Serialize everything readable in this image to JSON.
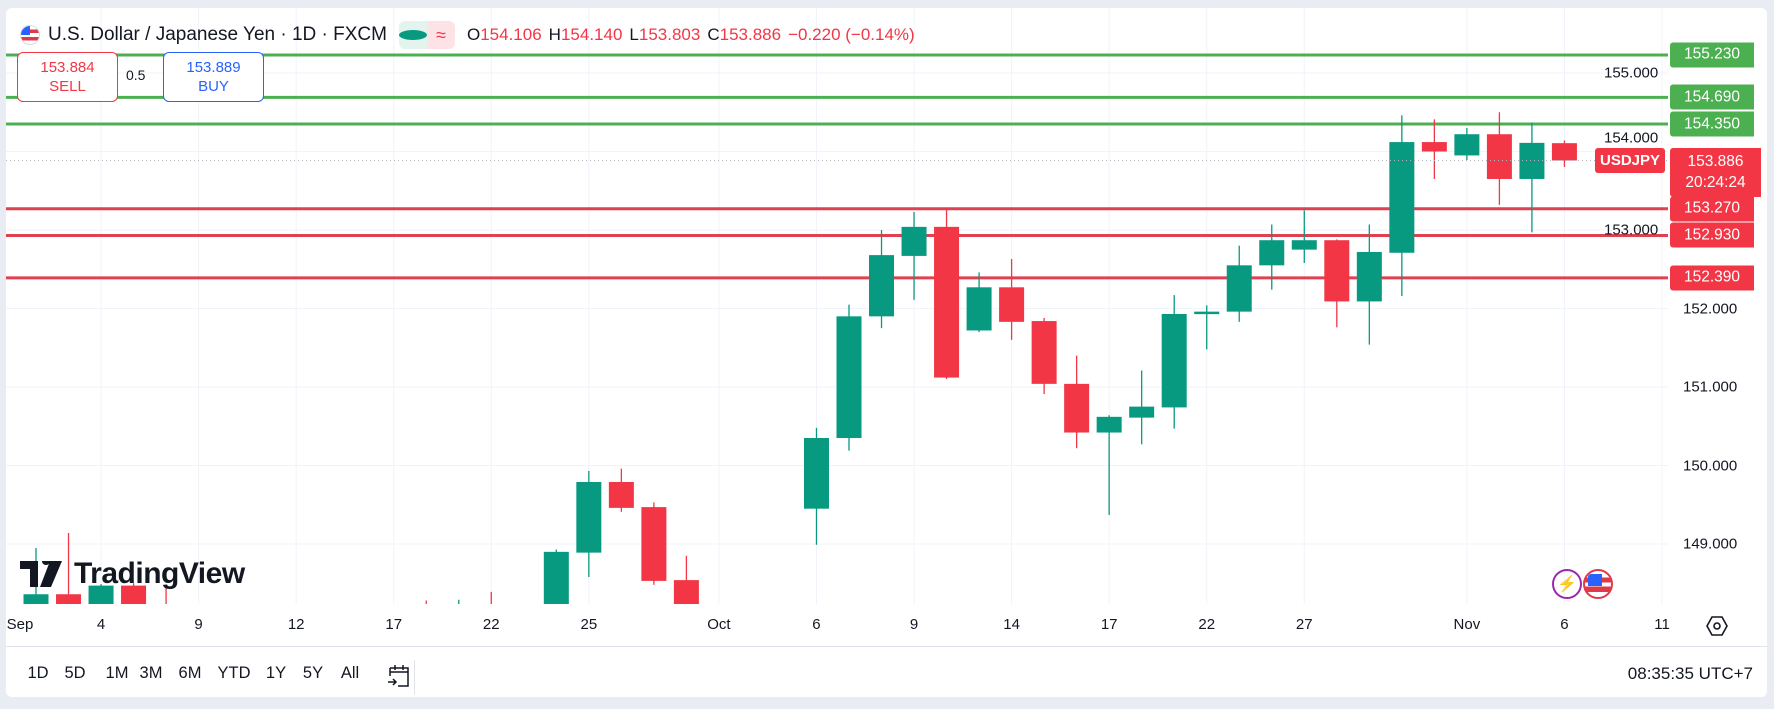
{
  "header": {
    "symbol_title": "U.S. Dollar / Japanese Yen · 1D · FXCM",
    "market_status": "market-open-dot",
    "open_label": "O",
    "open": "154.106",
    "high_label": "H",
    "high": "154.140",
    "low_label": "L",
    "low": "153.803",
    "close_label": "C",
    "close": "153.886",
    "change": "−0.220 (−0.14%)"
  },
  "trade": {
    "sell_price": "153.884",
    "sell_label": "SELL",
    "spread": "0.5",
    "buy_price": "153.889",
    "buy_label": "BUY"
  },
  "watermark": "TradingView",
  "colors": {
    "up": "#089981",
    "down": "#f23645",
    "support_line": "#4caf50",
    "resistance_line": "#f23645",
    "buy": "#2962ff"
  },
  "price_axis": [
    "155.000",
    "154.000",
    "153.000",
    "152.000",
    "151.000",
    "150.000",
    "149.000"
  ],
  "levels": [
    {
      "price": 155.23,
      "label": "155.230",
      "kind": "green"
    },
    {
      "price": 154.69,
      "label": "154.690",
      "kind": "green"
    },
    {
      "price": 154.35,
      "label": "154.350",
      "kind": "green"
    },
    {
      "price": 153.27,
      "label": "153.270",
      "kind": "red"
    },
    {
      "price": 152.93,
      "label": "152.930",
      "kind": "red"
    },
    {
      "price": 152.39,
      "label": "152.390",
      "kind": "red"
    }
  ],
  "last_price": {
    "symbol": "USDJPY",
    "price": 153.886,
    "label": "153.886",
    "countdown": "20:24:24"
  },
  "chart_data": {
    "type": "candlestick",
    "ylim": [
      148.24,
      155.5
    ],
    "grid": true,
    "candles": [
      {
        "date": "2025-09-02",
        "o": 148.0,
        "h": 148.95,
        "l": 147.7,
        "c": 148.36
      },
      {
        "date": "2025-09-03",
        "o": 148.36,
        "h": 149.14,
        "l": 147.8,
        "c": 148.1
      },
      {
        "date": "2025-09-04",
        "o": 148.0,
        "h": 148.49,
        "l": 147.7,
        "c": 148.47
      },
      {
        "date": "2025-09-05",
        "o": 148.47,
        "h": 148.5,
        "l": 147.3,
        "c": 147.4
      },
      {
        "date": "2025-09-08",
        "o": 148.0,
        "h": 148.47,
        "l": 147.3,
        "c": 147.5
      },
      {
        "date": "2025-09-18",
        "o": 147.9,
        "h": 148.28,
        "l": 147.4,
        "c": 147.7
      },
      {
        "date": "2025-09-19",
        "o": 147.9,
        "h": 148.29,
        "l": 147.5,
        "c": 148.0
      },
      {
        "date": "2025-09-22",
        "o": 148.1,
        "h": 148.39,
        "l": 147.5,
        "c": 147.8
      },
      {
        "date": "2025-09-24",
        "o": 147.85,
        "h": 148.93,
        "l": 147.7,
        "c": 148.9
      },
      {
        "date": "2025-09-25",
        "o": 148.89,
        "h": 149.93,
        "l": 148.58,
        "c": 149.79
      },
      {
        "date": "2025-09-26",
        "o": 149.79,
        "h": 149.96,
        "l": 149.41,
        "c": 149.46
      },
      {
        "date": "2025-09-29",
        "o": 149.47,
        "h": 149.53,
        "l": 148.48,
        "c": 148.53
      },
      {
        "date": "2025-09-30",
        "o": 148.54,
        "h": 148.85,
        "l": 147.6,
        "c": 147.9
      },
      {
        "date": "2025-10-06",
        "o": 149.45,
        "h": 150.48,
        "l": 148.99,
        "c": 150.35
      },
      {
        "date": "2025-10-07",
        "o": 150.35,
        "h": 152.05,
        "l": 150.19,
        "c": 151.9
      },
      {
        "date": "2025-10-08",
        "o": 151.9,
        "h": 153.0,
        "l": 151.75,
        "c": 152.68
      },
      {
        "date": "2025-10-09",
        "o": 152.67,
        "h": 153.23,
        "l": 152.11,
        "c": 153.04
      },
      {
        "date": "2025-10-10",
        "o": 153.04,
        "h": 153.26,
        "l": 151.1,
        "c": 151.12
      },
      {
        "date": "2025-10-13",
        "o": 151.72,
        "h": 152.46,
        "l": 151.7,
        "c": 152.27
      },
      {
        "date": "2025-10-14",
        "o": 152.27,
        "h": 152.63,
        "l": 151.6,
        "c": 151.83
      },
      {
        "date": "2025-10-15",
        "o": 151.84,
        "h": 151.88,
        "l": 150.91,
        "c": 151.04
      },
      {
        "date": "2025-10-16",
        "o": 151.04,
        "h": 151.4,
        "l": 150.22,
        "c": 150.42
      },
      {
        "date": "2025-10-17",
        "o": 150.42,
        "h": 150.64,
        "l": 149.37,
        "c": 150.62
      },
      {
        "date": "2025-10-20",
        "o": 150.61,
        "h": 151.21,
        "l": 150.27,
        "c": 150.75
      },
      {
        "date": "2025-10-21",
        "o": 150.74,
        "h": 152.17,
        "l": 150.47,
        "c": 151.93
      },
      {
        "date": "2025-10-22",
        "o": 151.93,
        "h": 152.04,
        "l": 151.48,
        "c": 151.96
      },
      {
        "date": "2025-10-23",
        "o": 151.96,
        "h": 152.8,
        "l": 151.83,
        "c": 152.55
      },
      {
        "date": "2025-10-24",
        "o": 152.55,
        "h": 153.07,
        "l": 152.24,
        "c": 152.87
      },
      {
        "date": "2025-10-27",
        "o": 152.75,
        "h": 153.25,
        "l": 152.58,
        "c": 152.87
      },
      {
        "date": "2025-10-28",
        "o": 152.87,
        "h": 152.88,
        "l": 151.76,
        "c": 152.09
      },
      {
        "date": "2025-10-29",
        "o": 152.09,
        "h": 153.07,
        "l": 151.54,
        "c": 152.72
      },
      {
        "date": "2025-10-30",
        "o": 152.71,
        "h": 154.46,
        "l": 152.16,
        "c": 154.12
      },
      {
        "date": "2025-10-31",
        "o": 154.12,
        "h": 154.41,
        "l": 153.65,
        "c": 154.0
      },
      {
        "date": "2025-11-03",
        "o": 153.95,
        "h": 154.3,
        "l": 153.89,
        "c": 154.22
      },
      {
        "date": "2025-11-04",
        "o": 154.22,
        "h": 154.5,
        "l": 153.32,
        "c": 153.65
      },
      {
        "date": "2025-11-05",
        "o": 153.65,
        "h": 154.37,
        "l": 152.97,
        "c": 154.11
      },
      {
        "date": "2025-11-06",
        "o": 154.106,
        "h": 154.14,
        "l": 153.803,
        "c": 153.886
      }
    ],
    "x_ticks": [
      {
        "label": "Sep",
        "date": "2025-09-01"
      },
      {
        "label": "4",
        "date": "2025-09-04"
      },
      {
        "label": "9",
        "date": "2025-09-09"
      },
      {
        "label": "12",
        "date": "2025-09-12"
      },
      {
        "label": "17",
        "date": "2025-09-17"
      },
      {
        "label": "22",
        "date": "2025-09-22"
      },
      {
        "label": "25",
        "date": "2025-09-25"
      },
      {
        "label": "Oct",
        "date": "2025-10-01"
      },
      {
        "label": "6",
        "date": "2025-10-06"
      },
      {
        "label": "9",
        "date": "2025-10-09"
      },
      {
        "label": "14",
        "date": "2025-10-14"
      },
      {
        "label": "17",
        "date": "2025-10-17"
      },
      {
        "label": "22",
        "date": "2025-10-22"
      },
      {
        "label": "27",
        "date": "2025-10-27"
      },
      {
        "label": "Nov",
        "date": "2025-11-03"
      },
      {
        "label": "6",
        "date": "2025-11-06"
      },
      {
        "label": "11",
        "date": "2025-11-11"
      }
    ]
  },
  "bottom_bar": {
    "ranges": [
      "1D",
      "5D",
      "1M",
      "3M",
      "6M",
      "YTD",
      "1Y",
      "5Y",
      "All"
    ],
    "time": "08:35:35 UTC+7"
  }
}
